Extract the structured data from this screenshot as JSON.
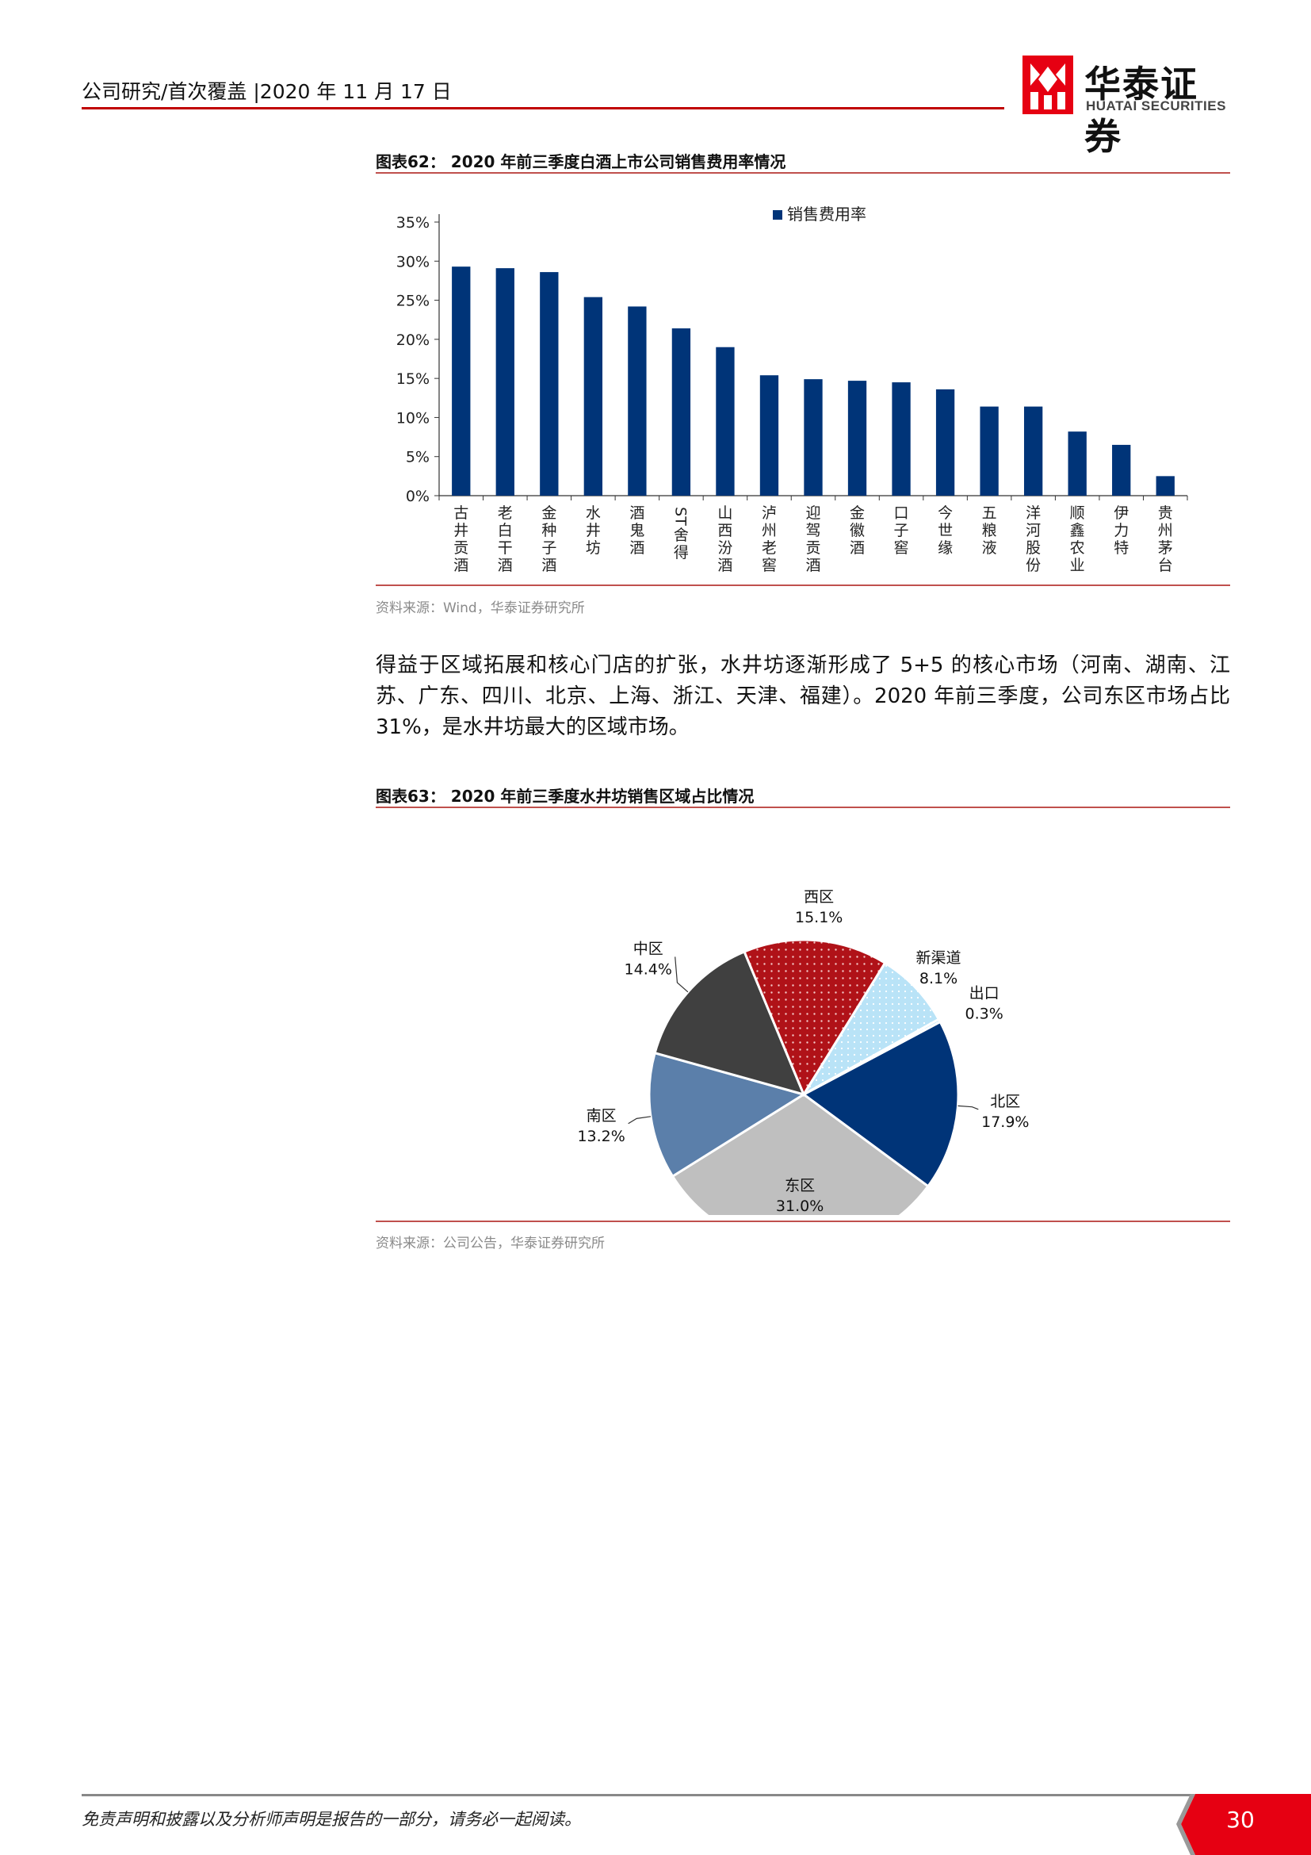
{
  "header": {
    "left_text": "公司研究/首次覆盖 |2020 年 11 月 17 日",
    "logo_cn": "华泰证券",
    "logo_en": "HUATAI SECURITIES"
  },
  "figure62": {
    "title": "图表62：  2020 年前三季度白酒上市公司销售费用率情况",
    "source": "资料来源：Wind，华泰证券研究所"
  },
  "figure63": {
    "title": "图表63：  2020 年前三季度水井坊销售区域占比情况",
    "source": "资料来源：公司公告，华泰证券研究所"
  },
  "paragraph": "得益于区域拓展和核心门店的扩张，水井坊逐渐形成了 5+5 的核心市场（河南、湖南、江苏、广东、四川、北京、上海、浙江、天津、福建）。2020 年前三季度，公司东区市场占比 31%，是水井坊最大的区域市场。",
  "footer": {
    "disclaimer": "免责声明和披露以及分析师声明是报告的一部分，请务必一起阅读。",
    "page_number": "30"
  },
  "colors": {
    "accent_red": "#c00000",
    "bar_blue": "#003478"
  },
  "chart_data": [
    {
      "type": "bar",
      "legend": "销售费用率",
      "categories": [
        "古井贡酒",
        "老白干酒",
        "金种子酒",
        "水井坊",
        "酒鬼酒",
        "ST舍得",
        "山西汾酒",
        "泸州老窖",
        "迎驾贡酒",
        "金徽酒",
        "口子窖",
        "今世缘",
        "五粮液",
        "洋河股份",
        "顺鑫农业",
        "伊力特",
        "贵州茅台"
      ],
      "values": [
        29.3,
        29.1,
        28.6,
        25.4,
        24.2,
        21.4,
        19.0,
        15.4,
        14.9,
        14.7,
        14.5,
        13.6,
        11.4,
        11.4,
        8.2,
        6.5,
        2.5
      ],
      "yticks": [
        "0%",
        "5%",
        "10%",
        "15%",
        "20%",
        "25%",
        "30%",
        "35%"
      ],
      "ylim": [
        0,
        35
      ],
      "legend_position": "top"
    },
    {
      "type": "pie",
      "slices": [
        {
          "label": "北区",
          "value": 17.9,
          "pct_text": "17.9%",
          "color": "#003478"
        },
        {
          "label": "东区",
          "value": 31.0,
          "pct_text": "31.0%",
          "color": "#bfbfbf"
        },
        {
          "label": "南区",
          "value": 13.2,
          "pct_text": "13.2%",
          "color": "#5b7faa"
        },
        {
          "label": "中区",
          "value": 14.4,
          "pct_text": "14.4%",
          "color": "#404040"
        },
        {
          "label": "西区",
          "value": 15.1,
          "pct_text": "15.1%",
          "color": "#b01218"
        },
        {
          "label": "新渠道",
          "value": 8.1,
          "pct_text": "8.1%",
          "color": "#b9e3f7"
        },
        {
          "label": "出口",
          "value": 0.3,
          "pct_text": "0.3%",
          "color": "#b9e3f7"
        }
      ]
    }
  ]
}
